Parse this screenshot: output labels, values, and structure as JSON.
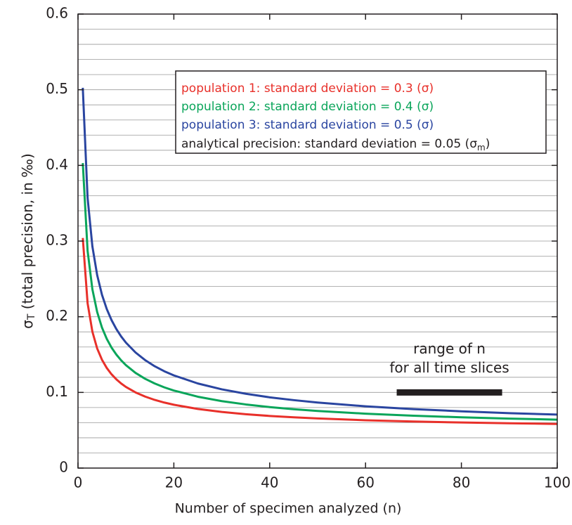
{
  "chart_data": {
    "type": "line",
    "xlabel": "Number of specimen analyzed (n)",
    "ylabel": {
      "text": "σ",
      "sub": "T",
      "tail": " (total precision, in ‰)"
    },
    "x": [
      1,
      2,
      3,
      4,
      5,
      6,
      7,
      8,
      9,
      10,
      12,
      14,
      16,
      18,
      20,
      25,
      30,
      35,
      40,
      45,
      50,
      60,
      70,
      80,
      90,
      100
    ],
    "series": [
      {
        "name": "population 1: standard deviation = 0.3 (σ)",
        "color": "#e8302a",
        "values": [
          0.3041,
          0.2179,
          0.1803,
          0.1581,
          0.1432,
          0.1323,
          0.1239,
          0.1173,
          0.1118,
          0.1072,
          0.1,
          0.0945,
          0.0901,
          0.0866,
          0.0837,
          0.0781,
          0.0742,
          0.0712,
          0.0689,
          0.0671,
          0.0656,
          0.0632,
          0.0615,
          0.0602,
          0.0592,
          0.0583
        ]
      },
      {
        "name": "population 2: standard deviation = 0.4 (σ)",
        "color": "#0aa55a",
        "values": [
          0.4031,
          0.2872,
          0.2363,
          0.2062,
          0.1857,
          0.1708,
          0.1592,
          0.15,
          0.1424,
          0.136,
          0.1258,
          0.118,
          0.1118,
          0.1067,
          0.1025,
          0.0943,
          0.0885,
          0.0841,
          0.0806,
          0.0778,
          0.0755,
          0.0719,
          0.0692,
          0.0671,
          0.0654,
          0.064
        ]
      },
      {
        "name": "population 3: standard deviation = 0.5 (σ)",
        "color": "#2a45a0",
        "values": [
          0.5025,
          0.3571,
          0.293,
          0.255,
          0.2291,
          0.2102,
          0.1955,
          0.1837,
          0.174,
          0.1658,
          0.1528,
          0.1427,
          0.1346,
          0.128,
          0.1225,
          0.1118,
          0.1041,
          0.0982,
          0.0935,
          0.0898,
          0.0866,
          0.0816,
          0.0779,
          0.075,
          0.0726,
          0.0707
        ]
      }
    ],
    "legend_note": {
      "text": "analytical precision: standard deviation = 0.05 (σ",
      "sub": "m",
      "tail": ")"
    },
    "range_bar": {
      "x": [
        66.5,
        88.5
      ],
      "y": 0.1,
      "label": [
        "range of n",
        "for all time slices"
      ]
    },
    "xlim": [
      0,
      100
    ],
    "xticks": [
      0,
      20,
      40,
      60,
      80,
      100
    ],
    "ylim": [
      0,
      0.6
    ],
    "yticks": [
      0,
      0.1,
      0.2,
      0.3,
      0.4,
      0.5,
      0.6
    ],
    "minor_yticks": [
      0.02,
      0.04,
      0.06,
      0.08,
      0.12,
      0.14,
      0.16,
      0.18,
      0.22,
      0.24,
      0.26,
      0.28,
      0.32,
      0.34,
      0.36,
      0.38,
      0.42,
      0.44,
      0.46,
      0.48,
      0.52,
      0.54,
      0.56,
      0.58
    ],
    "grid": true
  }
}
